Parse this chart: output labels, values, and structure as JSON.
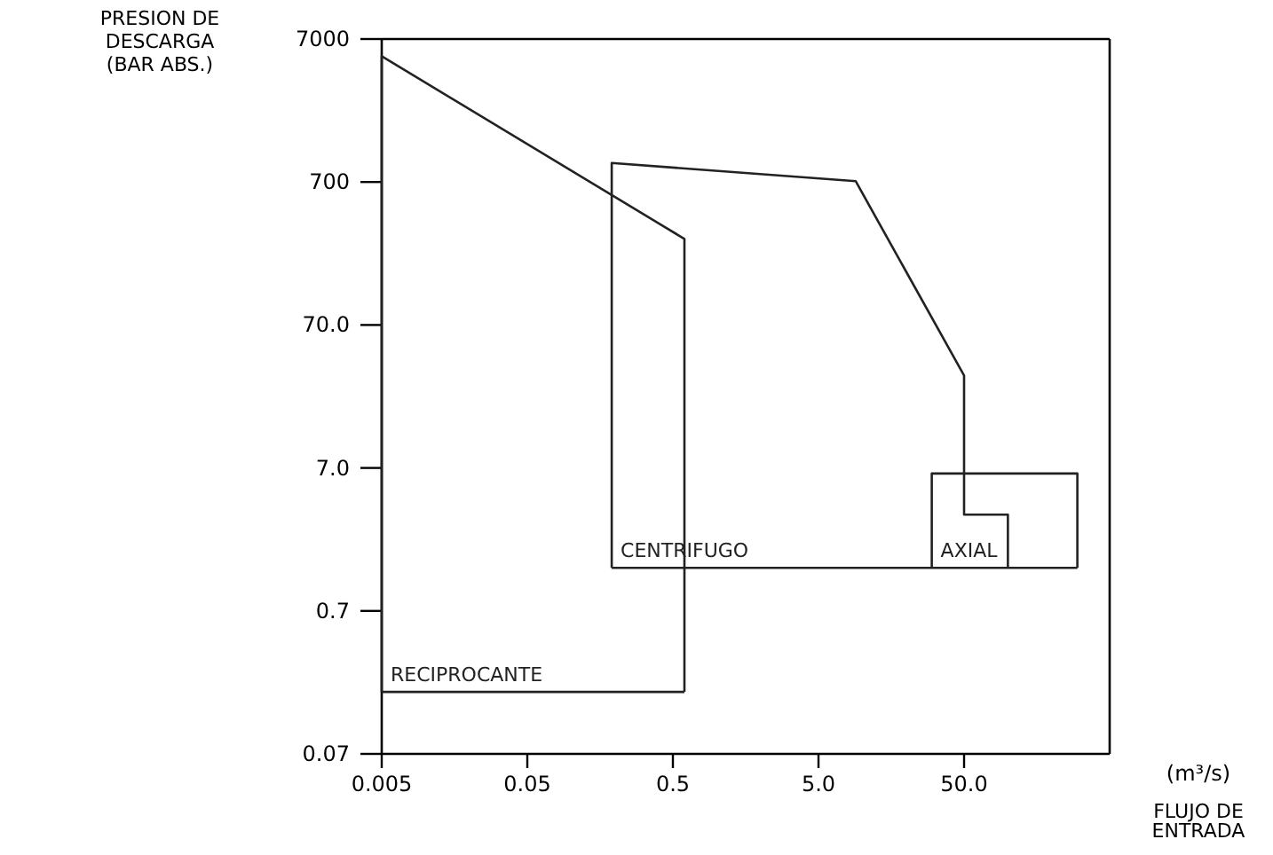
{
  "chart_data": {
    "type": "line",
    "log": "xy",
    "ylabel": "PRESION DE\nDESCARGA\n(BAR ABS.)",
    "xlabel": "FLUJO DE\nENTRADA",
    "annotations": [
      "(m³/s)"
    ],
    "xlim": [
      0.005,
      500
    ],
    "ylim": [
      0.07,
      7000
    ],
    "xticks": [
      0.005,
      0.05,
      0.5,
      {
        "value": 5,
        "label": "5.0"
      },
      {
        "value": 50,
        "label": "50.0"
      }
    ],
    "yticks": [
      7000,
      700,
      {
        "value": 70,
        "label": "70.0"
      },
      {
        "value": 7,
        "label": "7.0"
      },
      0.7,
      0.07
    ],
    "grid": false,
    "marker": "none",
    "line_style": "solid",
    "series": [
      {
        "name": "RECIPROCANTE",
        "color": "#222222",
        "x": [
          0.005,
          0.005,
          0.6,
          0.6
        ],
        "values": [
          0.19,
          5300,
          280,
          0.19
        ]
      },
      {
        "color": "#222222",
        "x": [
          0.005,
          0.6
        ],
        "values": [
          0.19,
          0.19
        ]
      },
      {
        "name": "CENTRIFUGO",
        "color": "#222222",
        "x": [
          0.19,
          0.19,
          9,
          50,
          50,
          100,
          100
        ],
        "values": [
          1.4,
          950,
          710,
          31,
          3.3,
          3.3,
          1.4
        ]
      },
      {
        "name": "AXIAL",
        "color": "#222222",
        "x": [
          30,
          30,
          300,
          300
        ],
        "values": [
          1.4,
          6.4,
          6.4,
          1.4
        ]
      },
      {
        "color": "#222222",
        "x": [
          0.19,
          300
        ],
        "values": [
          1.4,
          1.4
        ]
      }
    ]
  }
}
